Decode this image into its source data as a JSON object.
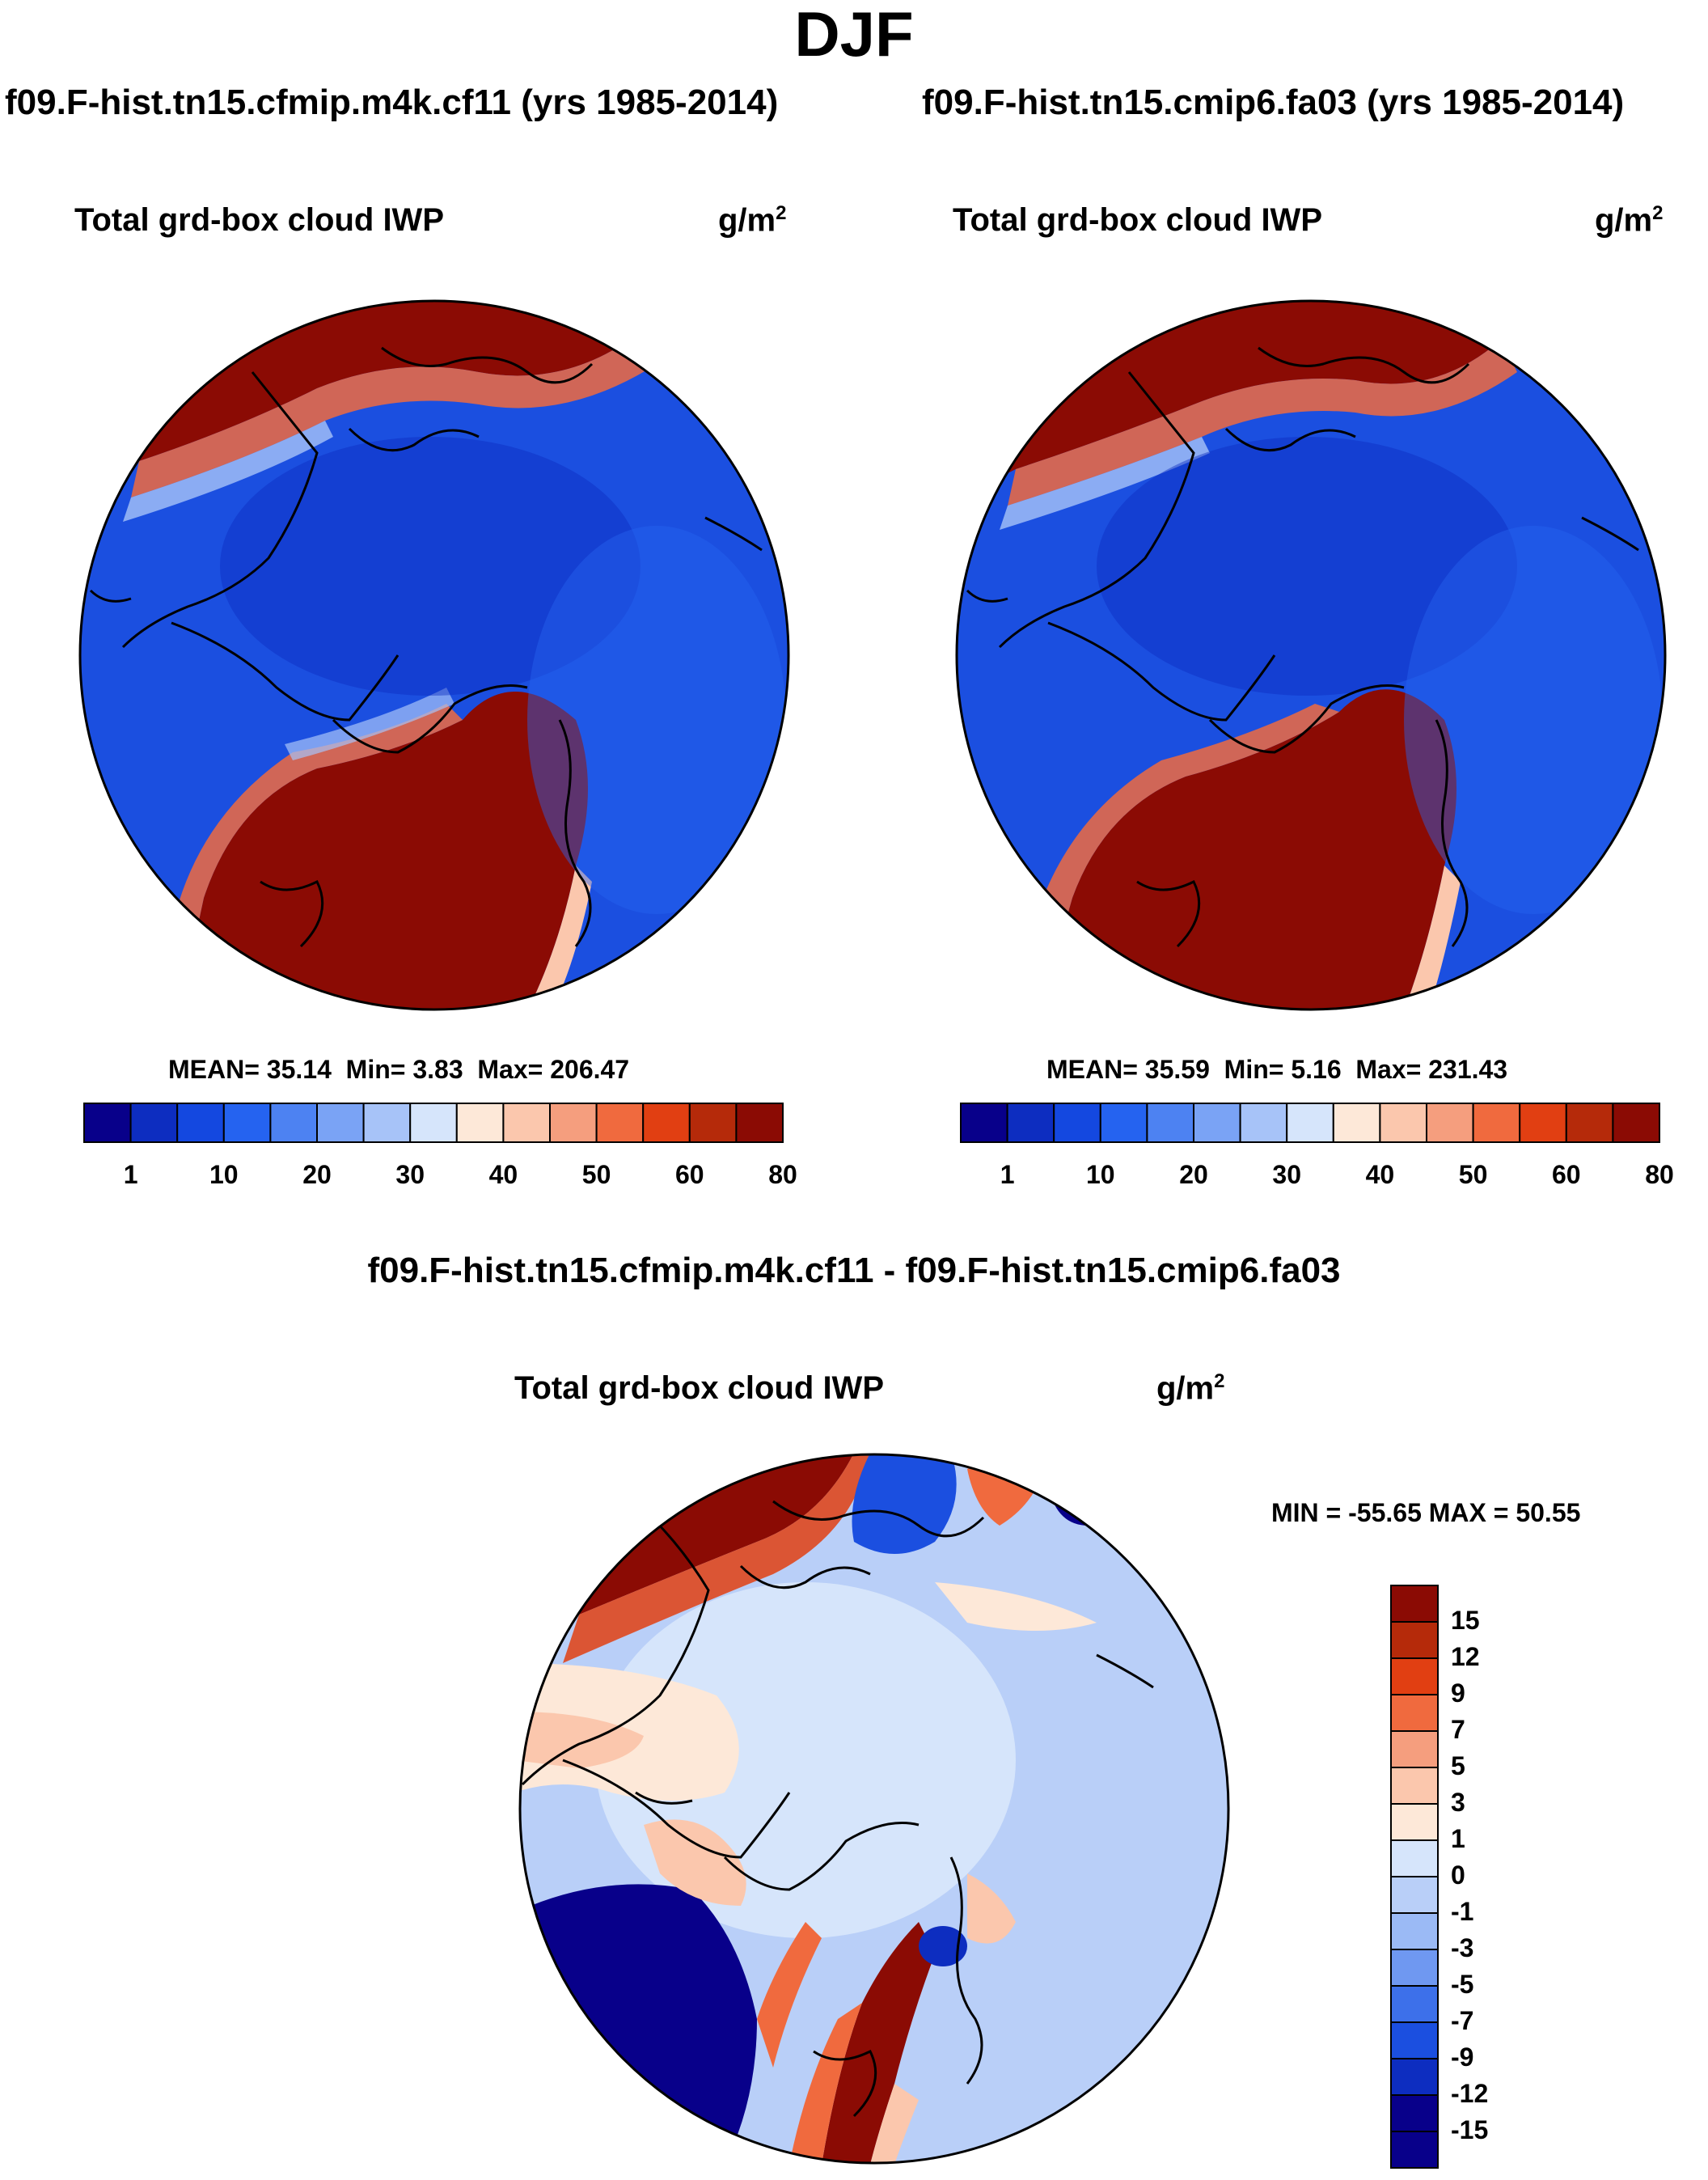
{
  "season": "DJF",
  "palette_abs": [
    "#08008a",
    "#0d2dc0",
    "#1448e0",
    "#2563f0",
    "#4d82f2",
    "#7aa3f5",
    "#a7c3f8",
    "#d6e5fb",
    "#fde8d8",
    "#fbc7ad",
    "#f59e7e",
    "#f06a3e",
    "#e13f12",
    "#b52a0a",
    "#8b0b04"
  ],
  "palette_diff": [
    "#8b0b04",
    "#b52a0a",
    "#e13f12",
    "#f06a3e",
    "#f59e7e",
    "#fbc7ad",
    "#fde8d8",
    "#d6e5fb",
    "#b9cff8",
    "#9bbaf5",
    "#6f98f1",
    "#3d70ea",
    "#1b4fe0",
    "#0d2dc0",
    "#08008a"
  ],
  "panels": {
    "left": {
      "case": "f09.F-hist.tn15.cfmip.m4k.cf11 (yrs 1985-2014)",
      "variable": "Total grd-box cloud IWP",
      "units": "g/m",
      "units_exp": "2",
      "mean_label": "MEAN=",
      "mean": "35.14",
      "min_label": "Min=",
      "min": "3.83",
      "max_label": "Max=",
      "max": "206.47",
      "cb_labels": [
        "1",
        "10",
        "20",
        "30",
        "40",
        "50",
        "60",
        "80"
      ]
    },
    "right": {
      "case": "f09.F-hist.tn15.cmip6.fa03 (yrs 1985-2014)",
      "variable": "Total grd-box cloud IWP",
      "units": "g/m",
      "units_exp": "2",
      "mean_label": "MEAN=",
      "mean": "35.59",
      "min_label": "Min=",
      "min": "5.16",
      "max_label": "Max=",
      "max": "231.43",
      "cb_labels": [
        "1",
        "10",
        "20",
        "30",
        "40",
        "50",
        "60",
        "80"
      ]
    },
    "diff": {
      "case": "f09.F-hist.tn15.cfmip.m4k.cf11 - f09.F-hist.tn15.cmip6.fa03",
      "variable": "Total grd-box cloud IWP",
      "units": "g/m",
      "units_exp": "2",
      "minmax": "MIN = -55.65 MAX =  50.55",
      "cb_labels": [
        "15",
        "12",
        "9",
        "7",
        "5",
        "3",
        "1",
        "0",
        "-1",
        "-3",
        "-5",
        "-7",
        "-9",
        "-12",
        "-15"
      ]
    }
  },
  "chart_data": [
    {
      "type": "heatmap",
      "projection": "north polar stereographic",
      "title": "f09.F-hist.tn15.cfmip.m4k.cf11 (yrs 1985-2014)",
      "variable": "Total grd-box cloud IWP",
      "units": "g/m2",
      "mean": 35.14,
      "min": 3.83,
      "max": 206.47,
      "colorbar_levels": [
        1,
        10,
        20,
        30,
        40,
        50,
        60,
        80
      ]
    },
    {
      "type": "heatmap",
      "projection": "north polar stereographic",
      "title": "f09.F-hist.tn15.cmip6.fa03 (yrs 1985-2014)",
      "variable": "Total grd-box cloud IWP",
      "units": "g/m2",
      "mean": 35.59,
      "min": 5.16,
      "max": 231.43,
      "colorbar_levels": [
        1,
        10,
        20,
        30,
        40,
        50,
        60,
        80
      ]
    },
    {
      "type": "heatmap",
      "projection": "north polar stereographic",
      "title": "f09.F-hist.tn15.cfmip.m4k.cf11 - f09.F-hist.tn15.cmip6.fa03",
      "variable": "Total grd-box cloud IWP",
      "units": "g/m2",
      "min": -55.65,
      "max": 50.55,
      "colorbar_levels": [
        15,
        12,
        9,
        7,
        5,
        3,
        1,
        0,
        -1,
        -3,
        -5,
        -7,
        -9,
        -12,
        -15
      ]
    }
  ]
}
